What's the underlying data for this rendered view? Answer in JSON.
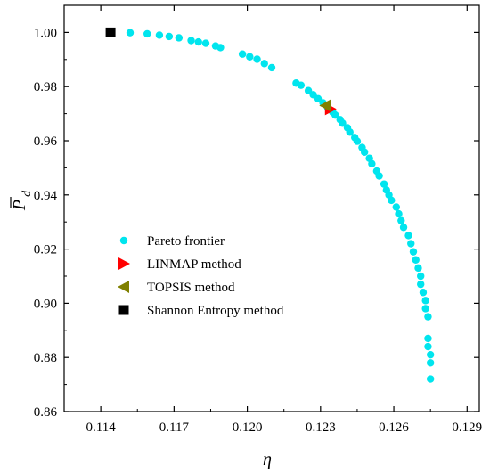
{
  "chart_data": {
    "type": "scatter",
    "title": "",
    "xlabel": "η",
    "ylabel_main": "P",
    "ylabel_sub": "d",
    "xlim": [
      0.1125,
      0.1295
    ],
    "ylim": [
      0.86,
      1.01
    ],
    "x_ticks": [
      "0.114",
      "0.117",
      "0.120",
      "0.123",
      "0.126",
      "0.129"
    ],
    "x_tick_values": [
      0.114,
      0.117,
      0.12,
      0.123,
      0.126,
      0.129
    ],
    "y_ticks": [
      "0.86",
      "0.88",
      "0.90",
      "0.92",
      "0.94",
      "0.96",
      "0.98",
      "1.00"
    ],
    "y_tick_values": [
      0.86,
      0.88,
      0.9,
      0.92,
      0.94,
      0.96,
      0.98,
      1.0
    ],
    "legend_position": "center-left",
    "series": [
      {
        "name": "Pareto frontier",
        "marker": "circle",
        "color": "#00e5ee",
        "points": [
          [
            0.1152,
            0.9999
          ],
          [
            0.1159,
            0.9995
          ],
          [
            0.1164,
            0.999
          ],
          [
            0.1168,
            0.9985
          ],
          [
            0.1172,
            0.998
          ],
          [
            0.1177,
            0.997
          ],
          [
            0.118,
            0.9965
          ],
          [
            0.1183,
            0.996
          ],
          [
            0.1187,
            0.995
          ],
          [
            0.1189,
            0.9944
          ],
          [
            0.1198,
            0.992
          ],
          [
            0.1201,
            0.991
          ],
          [
            0.1204,
            0.9901
          ],
          [
            0.1207,
            0.9885
          ],
          [
            0.121,
            0.987
          ],
          [
            0.122,
            0.9813
          ],
          [
            0.1222,
            0.9805
          ],
          [
            0.1225,
            0.9785
          ],
          [
            0.1227,
            0.977
          ],
          [
            0.1229,
            0.9755
          ],
          [
            0.1231,
            0.974
          ],
          [
            0.1233,
            0.972
          ],
          [
            0.1235,
            0.9705
          ],
          [
            0.1236,
            0.9695
          ],
          [
            0.1238,
            0.9678
          ],
          [
            0.1239,
            0.9665
          ],
          [
            0.1241,
            0.9648
          ],
          [
            0.1242,
            0.9632
          ],
          [
            0.1244,
            0.9612
          ],
          [
            0.1245,
            0.9598
          ],
          [
            0.1247,
            0.9575
          ],
          [
            0.1248,
            0.9558
          ],
          [
            0.125,
            0.9535
          ],
          [
            0.1251,
            0.9515
          ],
          [
            0.1253,
            0.9488
          ],
          [
            0.1254,
            0.947
          ],
          [
            0.1256,
            0.944
          ],
          [
            0.1257,
            0.9418
          ],
          [
            0.1258,
            0.94
          ],
          [
            0.1259,
            0.938
          ],
          [
            0.1261,
            0.9355
          ],
          [
            0.1262,
            0.933
          ],
          [
            0.1263,
            0.9305
          ],
          [
            0.1264,
            0.928
          ],
          [
            0.1266,
            0.925
          ],
          [
            0.1267,
            0.922
          ],
          [
            0.1268,
            0.919
          ],
          [
            0.1269,
            0.916
          ],
          [
            0.127,
            0.913
          ],
          [
            0.1271,
            0.91
          ],
          [
            0.1271,
            0.907
          ],
          [
            0.1272,
            0.904
          ],
          [
            0.1273,
            0.901
          ],
          [
            0.1273,
            0.898
          ],
          [
            0.1274,
            0.895
          ],
          [
            0.1274,
            0.887
          ],
          [
            0.1274,
            0.884
          ],
          [
            0.1275,
            0.881
          ],
          [
            0.1275,
            0.878
          ],
          [
            0.1275,
            0.872
          ]
        ]
      },
      {
        "name": "LINMAP method",
        "marker": "triangle-right",
        "color": "#ff0000",
        "points": [
          [
            0.1234,
            0.9717
          ]
        ]
      },
      {
        "name": "TOPSIS method",
        "marker": "triangle-left",
        "color": "#808000",
        "points": [
          [
            0.1232,
            0.973
          ]
        ]
      },
      {
        "name": "Shannon Entropy method",
        "marker": "square",
        "color": "#000000",
        "points": [
          [
            0.1144,
            1.0
          ]
        ]
      }
    ]
  }
}
